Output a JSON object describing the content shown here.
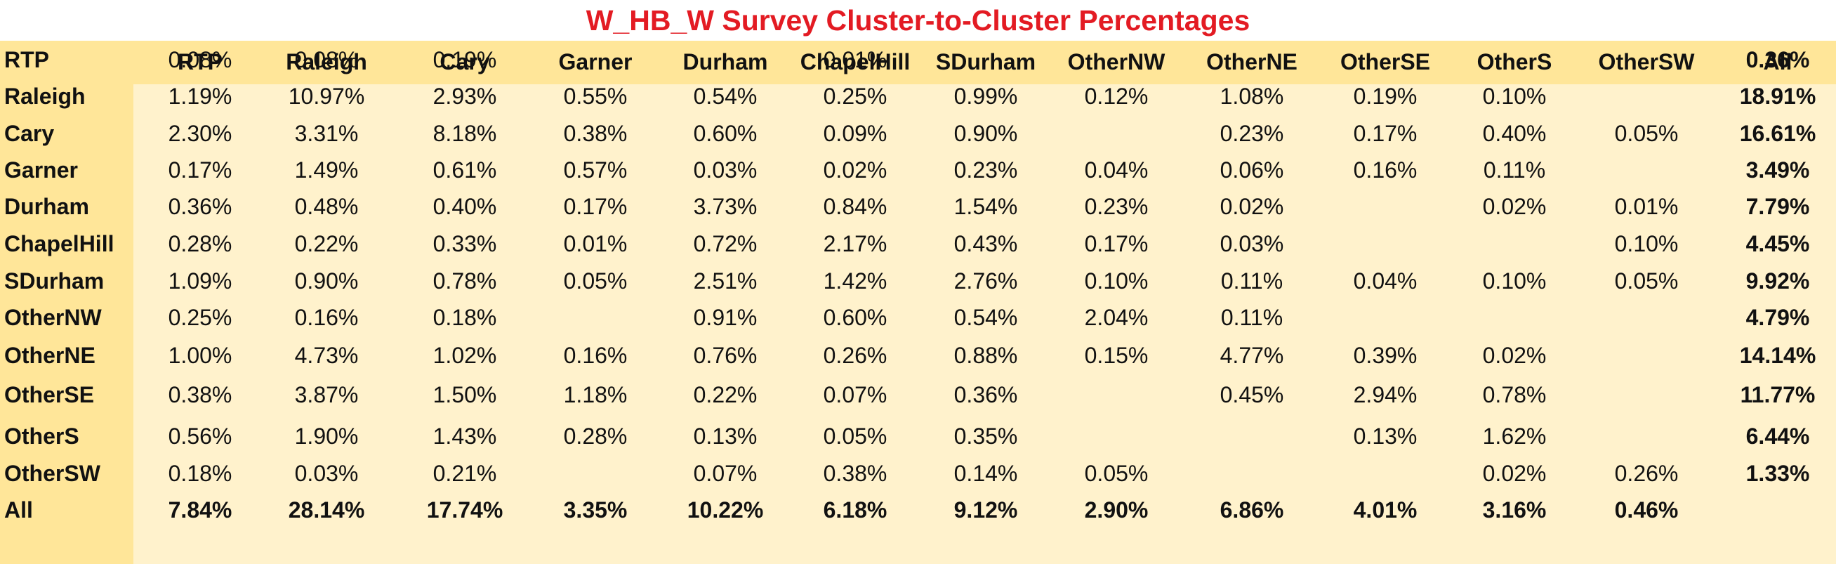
{
  "title": "W_HB_W Survey Cluster-to-Cluster Percentages",
  "colors": {
    "title": "#e31b23",
    "body_fill": "#fff2cc",
    "header_fill": "#ffe699"
  },
  "chart_data": {
    "type": "table",
    "title": "W_HB_W Survey Cluster-to-Cluster Percentages",
    "columns": [
      "RTP",
      "Raleigh",
      "Cary",
      "Garner",
      "Durham",
      "ChapelHill",
      "SDurham",
      "OtherNW",
      "OtherNE",
      "OtherSE",
      "OtherS",
      "OtherSW",
      "All"
    ],
    "rows": [
      {
        "label": "RTP",
        "values": [
          "0.08%",
          "0.08%",
          "0.19%",
          "",
          "",
          "0.01%",
          "",
          "",
          "",
          "",
          "",
          "",
          "0.36%"
        ]
      },
      {
        "label": "Raleigh",
        "values": [
          "1.19%",
          "10.97%",
          "2.93%",
          "0.55%",
          "0.54%",
          "0.25%",
          "0.99%",
          "0.12%",
          "1.08%",
          "0.19%",
          "0.10%",
          "",
          "18.91%"
        ]
      },
      {
        "label": "Cary",
        "values": [
          "2.30%",
          "3.31%",
          "8.18%",
          "0.38%",
          "0.60%",
          "0.09%",
          "0.90%",
          "",
          "0.23%",
          "0.17%",
          "0.40%",
          "0.05%",
          "16.61%"
        ]
      },
      {
        "label": "Garner",
        "values": [
          "0.17%",
          "1.49%",
          "0.61%",
          "0.57%",
          "0.03%",
          "0.02%",
          "0.23%",
          "0.04%",
          "0.06%",
          "0.16%",
          "0.11%",
          "",
          "3.49%"
        ]
      },
      {
        "label": "Durham",
        "values": [
          "0.36%",
          "0.48%",
          "0.40%",
          "0.17%",
          "3.73%",
          "0.84%",
          "1.54%",
          "0.23%",
          "0.02%",
          "",
          "0.02%",
          "0.01%",
          "7.79%"
        ]
      },
      {
        "label": "ChapelHill",
        "values": [
          "0.28%",
          "0.22%",
          "0.33%",
          "0.01%",
          "0.72%",
          "2.17%",
          "0.43%",
          "0.17%",
          "0.03%",
          "",
          "",
          "0.10%",
          "4.45%"
        ]
      },
      {
        "label": "SDurham",
        "values": [
          "1.09%",
          "0.90%",
          "0.78%",
          "0.05%",
          "2.51%",
          "1.42%",
          "2.76%",
          "0.10%",
          "0.11%",
          "0.04%",
          "0.10%",
          "0.05%",
          "9.92%"
        ]
      },
      {
        "label": "OtherNW",
        "values": [
          "0.25%",
          "0.16%",
          "0.18%",
          "",
          "0.91%",
          "0.60%",
          "0.54%",
          "2.04%",
          "0.11%",
          "",
          "",
          "",
          "4.79%"
        ]
      },
      {
        "label": "OtherNE",
        "values": [
          "1.00%",
          "4.73%",
          "1.02%",
          "0.16%",
          "0.76%",
          "0.26%",
          "0.88%",
          "0.15%",
          "4.77%",
          "0.39%",
          "0.02%",
          "",
          "14.14%"
        ]
      },
      {
        "label": "OtherSE",
        "values": [
          "0.38%",
          "3.87%",
          "1.50%",
          "1.18%",
          "0.22%",
          "0.07%",
          "0.36%",
          "",
          "0.45%",
          "2.94%",
          "0.78%",
          "",
          "11.77%"
        ]
      },
      {
        "label": "OtherS",
        "values": [
          "0.56%",
          "1.90%",
          "1.43%",
          "0.28%",
          "0.13%",
          "0.05%",
          "0.35%",
          "",
          "",
          "0.13%",
          "1.62%",
          "",
          "6.44%"
        ]
      },
      {
        "label": "OtherSW",
        "values": [
          "0.18%",
          "0.03%",
          "0.21%",
          "",
          "0.07%",
          "0.38%",
          "0.14%",
          "0.05%",
          "",
          "",
          "0.02%",
          "0.26%",
          "1.33%"
        ]
      },
      {
        "label": "All",
        "values": [
          "7.84%",
          "28.14%",
          "17.74%",
          "3.35%",
          "10.22%",
          "6.18%",
          "9.12%",
          "2.90%",
          "6.86%",
          "4.01%",
          "3.16%",
          "0.46%",
          ""
        ]
      }
    ]
  }
}
